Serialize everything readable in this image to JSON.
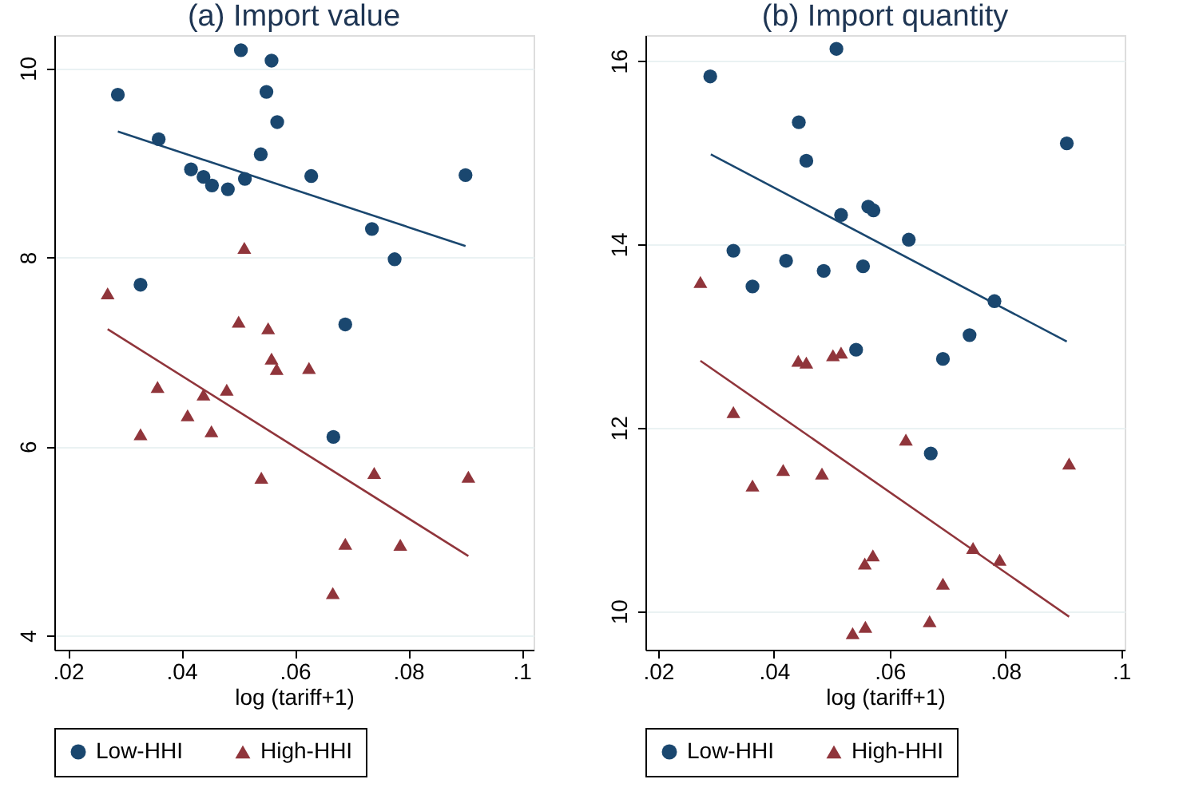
{
  "chart_data": [
    {
      "type": "scatter",
      "title": "(a) Import value",
      "xlabel": "log (tariff+1)",
      "xlim": [
        0.0176,
        0.1021
      ],
      "ylim": [
        3.85,
        10.35
      ],
      "xticks": [
        {
          "value": 0.02,
          "label": ".02"
        },
        {
          "value": 0.04,
          "label": ".04"
        },
        {
          "value": 0.06,
          "label": ".06"
        },
        {
          "value": 0.08,
          "label": ".08"
        },
        {
          "value": 0.1,
          "label": ".1"
        }
      ],
      "yticks": [
        4,
        6,
        8,
        10
      ],
      "grid": "y",
      "legend": "bottom",
      "series": [
        {
          "name": "Low-HHI",
          "color": "#1a476f",
          "marker": "circle",
          "x": [
            0.0288,
            0.036,
            0.0417,
            0.0439,
            0.0454,
            0.0482,
            0.0505,
            0.0512,
            0.054,
            0.055,
            0.0559,
            0.0569,
            0.0629,
            0.0736,
            0.0776,
            0.0901,
            0.0328,
            0.0689,
            0.0668
          ],
          "values": [
            9.72,
            9.25,
            8.93,
            8.85,
            8.76,
            8.72,
            10.19,
            8.83,
            9.09,
            9.75,
            10.08,
            9.43,
            8.86,
            8.3,
            7.98,
            8.87,
            7.71,
            7.29,
            6.1
          ]
        },
        {
          "name": "High-HHI",
          "color": "#90353b",
          "marker": "triangle",
          "x": [
            0.027,
            0.0511,
            0.0501,
            0.0553,
            0.0559,
            0.0568,
            0.0625,
            0.0358,
            0.0439,
            0.048,
            0.0411,
            0.0328,
            0.0453,
            0.0541,
            0.074,
            0.0906,
            0.0689,
            0.0786,
            0.0667
          ],
          "values": [
            7.62,
            8.1,
            7.32,
            7.25,
            6.93,
            6.82,
            6.83,
            6.63,
            6.55,
            6.6,
            6.33,
            6.13,
            6.16,
            5.67,
            5.72,
            5.68,
            4.97,
            4.96,
            4.45
          ]
        },
        {
          "type": "line",
          "color": "#1a476f",
          "x": [
            0.0288,
            0.0901
          ],
          "values": [
            9.33,
            8.12
          ]
        },
        {
          "type": "line",
          "color": "#90353b",
          "x": [
            0.027,
            0.0906
          ],
          "values": [
            7.24,
            4.84
          ]
        }
      ]
    },
    {
      "type": "scatter",
      "title": "(b) Import quantity",
      "xlabel": "log (tariff+1)",
      "xlim": [
        0.0178,
        0.1006
      ],
      "ylim": [
        9.58,
        16.28
      ],
      "xticks": [
        {
          "value": 0.02,
          "label": ".02"
        },
        {
          "value": 0.04,
          "label": ".04"
        },
        {
          "value": 0.06,
          "label": ".06"
        },
        {
          "value": 0.08,
          "label": ".08"
        },
        {
          "value": 0.1,
          "label": ".1"
        }
      ],
      "yticks": [
        10,
        12,
        14,
        16
      ],
      "grid": "y",
      "legend": "bottom",
      "series": [
        {
          "name": "Low-HHI",
          "color": "#1a476f",
          "marker": "circle",
          "x": [
            0.029,
            0.0508,
            0.0443,
            0.0456,
            0.0906,
            0.0516,
            0.0563,
            0.0572,
            0.0633,
            0.033,
            0.0363,
            0.0421,
            0.0486,
            0.0554,
            0.0781,
            0.0738,
            0.0542,
            0.0692,
            0.0671
          ],
          "values": [
            15.83,
            16.13,
            15.33,
            14.91,
            15.1,
            14.32,
            14.41,
            14.37,
            14.05,
            13.93,
            13.54,
            13.82,
            13.71,
            13.76,
            13.38,
            13.01,
            12.85,
            12.75,
            11.72
          ]
        },
        {
          "name": "High-HHI",
          "color": "#90353b",
          "marker": "triangle",
          "x": [
            0.0273,
            0.0442,
            0.0456,
            0.0502,
            0.0516,
            0.033,
            0.0628,
            0.091,
            0.0416,
            0.0483,
            0.0363,
            0.0744,
            0.079,
            0.0571,
            0.0557,
            0.0692,
            0.0669,
            0.0558,
            0.0536
          ],
          "values": [
            13.59,
            12.73,
            12.71,
            12.79,
            12.82,
            12.17,
            11.87,
            11.61,
            11.54,
            11.5,
            11.37,
            10.69,
            10.56,
            10.61,
            10.52,
            10.3,
            9.89,
            9.83,
            9.76
          ]
        },
        {
          "type": "line",
          "color": "#1a476f",
          "x": [
            0.0291,
            0.0906
          ],
          "values": [
            14.98,
            12.94
          ]
        },
        {
          "type": "line",
          "color": "#90353b",
          "x": [
            0.0273,
            0.091
          ],
          "values": [
            12.73,
            9.94
          ]
        }
      ]
    }
  ]
}
